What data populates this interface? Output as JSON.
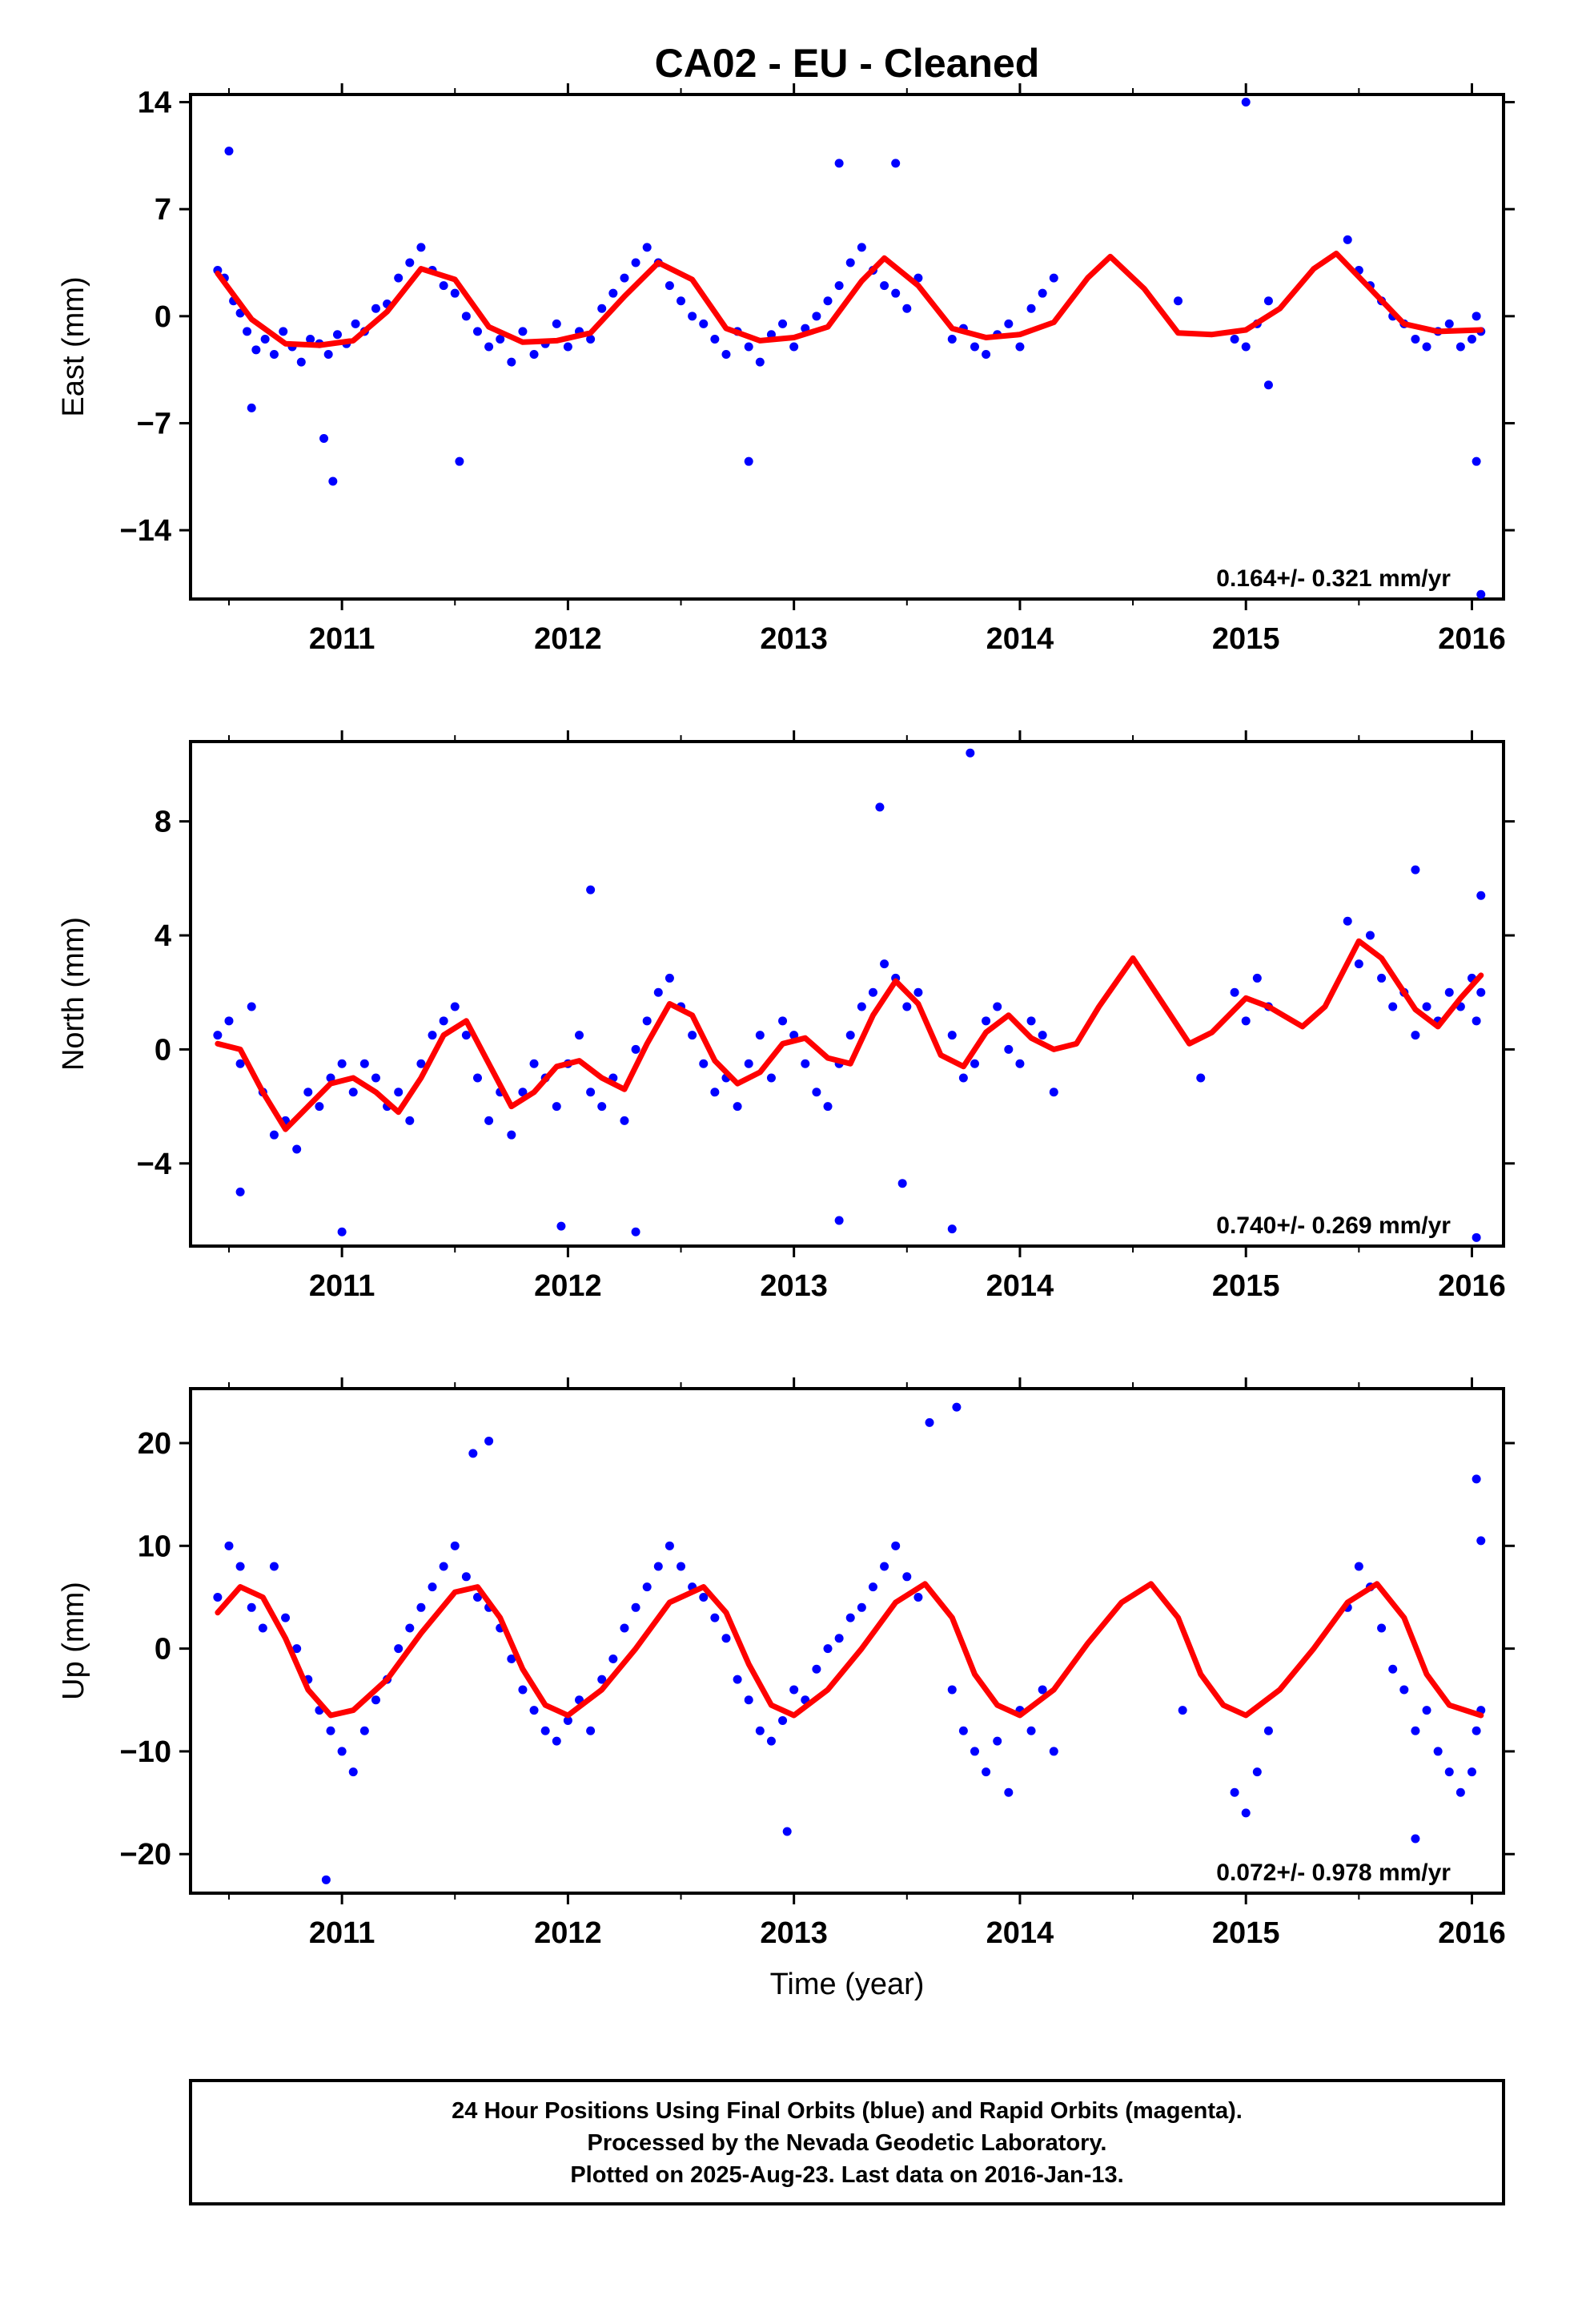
{
  "title": "CA02  - EU - Cleaned",
  "xlabel": "Time (year)",
  "colors": {
    "points": "#0000ff",
    "model": "#ff0000",
    "frame": "#000000"
  },
  "footer": {
    "line1": "24 Hour Positions Using Final Orbits (blue) and Rapid Orbits (magenta).",
    "line2": "Processed by the Nevada Geodetic Laboratory.",
    "line3": "Plotted on 2025-Aug-23. Last data on 2016-Jan-13."
  },
  "chart_data": [
    {
      "type": "scatter",
      "ylabel": "East (mm)",
      "xlim": [
        2010.33,
        2016.14
      ],
      "ylim": [
        -18.5,
        14.5
      ],
      "xticks": [
        "2011",
        "2012",
        "2013",
        "2014",
        "2015",
        "2016"
      ],
      "yticks": [
        "14",
        "7",
        "0",
        "−7",
        "−14"
      ],
      "ytick_values": [
        14,
        7,
        0,
        -7,
        -14
      ],
      "rate": "0.164+/- 0.321 mm/yr",
      "model": {
        "x": [
          2010.45,
          2010.6,
          2010.75,
          2010.9,
          2011.05,
          2011.2,
          2011.35,
          2011.5,
          2011.65,
          2011.8,
          2011.95,
          2012.1,
          2012.25,
          2012.4,
          2012.55,
          2012.7,
          2012.85,
          2013.0,
          2013.15,
          2013.3,
          2013.4,
          2013.55,
          2013.7,
          2013.85,
          2014.0,
          2014.15,
          2014.3,
          2014.4,
          2014.55,
          2014.7,
          2014.85,
          2015.0,
          2015.15,
          2015.3,
          2015.4,
          2015.55,
          2015.7,
          2015.85,
          2016.04
        ],
        "y": [
          2.8,
          -0.2,
          -1.8,
          -1.9,
          -1.6,
          0.3,
          3.1,
          2.4,
          -0.7,
          -1.7,
          -1.6,
          -1.1,
          1.3,
          3.5,
          2.4,
          -0.8,
          -1.6,
          -1.4,
          -0.7,
          2.3,
          3.8,
          2.0,
          -0.8,
          -1.4,
          -1.2,
          -0.4,
          2.5,
          3.9,
          1.8,
          -1.1,
          -1.2,
          -0.9,
          0.5,
          3.1,
          4.1,
          1.8,
          -0.5,
          -1.0,
          -0.9
        ]
      },
      "points": {
        "x": [
          2010.45,
          2010.48,
          2010.52,
          2010.55,
          2010.58,
          2010.62,
          2010.66,
          2010.7,
          2010.74,
          2010.78,
          2010.82,
          2010.86,
          2010.9,
          2010.94,
          2010.98,
          2011.02,
          2011.06,
          2011.1,
          2011.15,
          2011.2,
          2011.25,
          2011.3,
          2011.35,
          2011.4,
          2011.45,
          2011.5,
          2011.55,
          2011.6,
          2011.65,
          2011.7,
          2011.75,
          2011.8,
          2011.85,
          2011.9,
          2011.95,
          2012.0,
          2012.05,
          2012.1,
          2012.15,
          2012.2,
          2012.25,
          2012.3,
          2012.35,
          2012.4,
          2012.45,
          2012.5,
          2012.55,
          2012.6,
          2012.65,
          2012.7,
          2012.75,
          2012.8,
          2012.85,
          2012.9,
          2012.95,
          2013.0,
          2013.05,
          2013.1,
          2013.15,
          2013.2,
          2013.25,
          2013.3,
          2013.35,
          2013.4,
          2013.45,
          2013.5,
          2013.55,
          2013.7,
          2013.75,
          2013.8,
          2013.85,
          2013.9,
          2013.95,
          2014.0,
          2014.05,
          2014.1,
          2014.15,
          2014.7,
          2014.95,
          2015.0,
          2015.05,
          2015.1,
          2015.45,
          2015.5,
          2015.55,
          2015.6,
          2015.65,
          2015.7,
          2015.75,
          2015.8,
          2015.85,
          2015.9,
          2015.95,
          2016.0,
          2016.02,
          2016.04,
          2010.5,
          2010.6,
          2010.92,
          2010.96,
          2011.52,
          2012.8,
          2013.2,
          2013.45,
          2015.0,
          2015.1,
          2016.02,
          2016.04
        ],
        "y": [
          3.0,
          2.5,
          1.0,
          0.2,
          -1.0,
          -2.2,
          -1.5,
          -2.5,
          -1.0,
          -2.0,
          -3.0,
          -1.5,
          -1.8,
          -2.5,
          -1.2,
          -1.8,
          -0.5,
          -1.0,
          0.5,
          0.8,
          2.5,
          3.5,
          4.5,
          3.0,
          2.0,
          1.5,
          0.0,
          -1.0,
          -2.0,
          -1.5,
          -3.0,
          -1.0,
          -2.5,
          -1.8,
          -0.5,
          -2.0,
          -1.0,
          -1.5,
          0.5,
          1.5,
          2.5,
          3.5,
          4.5,
          3.5,
          2.0,
          1.0,
          0.0,
          -0.5,
          -1.5,
          -2.5,
          -1.0,
          -2.0,
          -3.0,
          -1.2,
          -0.5,
          -2.0,
          -0.8,
          0.0,
          1.0,
          2.0,
          3.5,
          4.5,
          3.0,
          2.0,
          1.5,
          0.5,
          2.5,
          -1.5,
          -0.8,
          -2.0,
          -2.5,
          -1.2,
          -0.5,
          -2.0,
          0.5,
          1.5,
          2.5,
          1.0,
          -1.5,
          -2.0,
          -0.5,
          1.0,
          5.0,
          3.0,
          2.0,
          1.0,
          0.0,
          -0.5,
          -1.5,
          -2.0,
          -1.0,
          -0.5,
          -2.0,
          -1.5,
          0.0,
          -1.0,
          10.8,
          -6.0,
          -8.0,
          -10.8,
          -9.5,
          -9.5,
          10.0,
          10.0,
          14.0,
          -4.5,
          -9.5,
          -18.2
        ]
      }
    },
    {
      "type": "scatter",
      "ylabel": "North (mm)",
      "xlim": [
        2010.33,
        2016.14
      ],
      "ylim": [
        -6.9,
        10.8
      ],
      "xticks": [
        "2011",
        "2012",
        "2013",
        "2014",
        "2015",
        "2016"
      ],
      "yticks": [
        "8",
        "4",
        "0",
        "−4"
      ],
      "ytick_values": [
        8,
        4,
        0,
        -4
      ],
      "rate": "0.740+/- 0.269 mm/yr",
      "model": {
        "x": [
          2010.45,
          2010.55,
          2010.65,
          2010.75,
          2010.85,
          2010.95,
          2011.05,
          2011.15,
          2011.25,
          2011.35,
          2011.45,
          2011.55,
          2011.65,
          2011.75,
          2011.85,
          2011.95,
          2012.05,
          2012.15,
          2012.25,
          2012.35,
          2012.45,
          2012.55,
          2012.65,
          2012.75,
          2012.85,
          2012.95,
          2013.05,
          2013.15,
          2013.25,
          2013.35,
          2013.45,
          2013.55,
          2013.65,
          2013.75,
          2013.85,
          2013.95,
          2014.05,
          2014.15,
          2014.25,
          2014.35,
          2014.5,
          2014.6,
          2014.75,
          2014.85,
          2015.0,
          2015.1,
          2015.25,
          2015.35,
          2015.5,
          2015.6,
          2015.75,
          2015.85,
          2015.95,
          2016.04
        ],
        "y": [
          0.2,
          0.0,
          -1.5,
          -2.8,
          -2.0,
          -1.2,
          -1.0,
          -1.5,
          -2.2,
          -1.0,
          0.5,
          1.0,
          -0.5,
          -2.0,
          -1.5,
          -0.6,
          -0.4,
          -1.0,
          -1.4,
          0.2,
          1.6,
          1.2,
          -0.4,
          -1.2,
          -0.8,
          0.2,
          0.4,
          -0.3,
          -0.5,
          1.2,
          2.4,
          1.6,
          -0.2,
          -0.6,
          0.6,
          1.2,
          0.4,
          0.0,
          0.2,
          1.5,
          3.2,
          2.0,
          0.2,
          0.6,
          1.8,
          1.5,
          0.8,
          1.5,
          3.8,
          3.2,
          1.4,
          0.8,
          1.8,
          2.6
        ]
      },
      "points": {
        "x": [
          2010.45,
          2010.5,
          2010.55,
          2010.6,
          2010.65,
          2010.7,
          2010.75,
          2010.8,
          2010.85,
          2010.9,
          2010.95,
          2011.0,
          2011.05,
          2011.1,
          2011.15,
          2011.2,
          2011.25,
          2011.3,
          2011.35,
          2011.4,
          2011.45,
          2011.5,
          2011.55,
          2011.6,
          2011.65,
          2011.7,
          2011.75,
          2011.8,
          2011.85,
          2011.9,
          2011.95,
          2012.0,
          2012.05,
          2012.1,
          2012.15,
          2012.2,
          2012.25,
          2012.3,
          2012.35,
          2012.4,
          2012.45,
          2012.5,
          2012.55,
          2012.6,
          2012.65,
          2012.7,
          2012.75,
          2012.8,
          2012.85,
          2012.9,
          2012.95,
          2013.0,
          2013.05,
          2013.1,
          2013.15,
          2013.2,
          2013.25,
          2013.3,
          2013.35,
          2013.4,
          2013.45,
          2013.5,
          2013.55,
          2013.7,
          2013.75,
          2013.8,
          2013.85,
          2013.9,
          2013.95,
          2014.0,
          2014.05,
          2014.1,
          2014.15,
          2014.8,
          2014.95,
          2015.0,
          2015.05,
          2015.1,
          2015.45,
          2015.5,
          2015.55,
          2015.6,
          2015.65,
          2015.7,
          2015.75,
          2015.8,
          2015.85,
          2015.9,
          2015.95,
          2016.0,
          2016.02,
          2016.04,
          2013.38,
          2013.78,
          2012.1,
          2010.55,
          2011.0,
          2011.97,
          2012.3,
          2013.2,
          2013.48,
          2013.7,
          2015.75,
          2016.02,
          2016.04
        ],
        "y": [
          0.5,
          1.0,
          -0.5,
          1.5,
          -1.5,
          -3.0,
          -2.5,
          -3.5,
          -1.5,
          -2.0,
          -1.0,
          -0.5,
          -1.5,
          -0.5,
          -1.0,
          -2.0,
          -1.5,
          -2.5,
          -0.5,
          0.5,
          1.0,
          1.5,
          0.5,
          -1.0,
          -2.5,
          -1.5,
          -3.0,
          -1.5,
          -0.5,
          -1.0,
          -2.0,
          -0.5,
          0.5,
          -1.5,
          -2.0,
          -1.0,
          -2.5,
          0.0,
          1.0,
          2.0,
          2.5,
          1.5,
          0.5,
          -0.5,
          -1.5,
          -1.0,
          -2.0,
          -0.5,
          0.5,
          -1.0,
          1.0,
          0.5,
          -0.5,
          -1.5,
          -2.0,
          -0.5,
          0.5,
          1.5,
          2.0,
          3.0,
          2.5,
          1.5,
          2.0,
          0.5,
          -1.0,
          -0.5,
          1.0,
          1.5,
          0.0,
          -0.5,
          1.0,
          0.5,
          -1.5,
          -1.0,
          2.0,
          1.0,
          2.5,
          1.5,
          4.5,
          3.0,
          4.0,
          2.5,
          1.5,
          2.0,
          0.5,
          1.5,
          1.0,
          2.0,
          1.5,
          2.5,
          1.0,
          2.0,
          8.5,
          10.4,
          5.6,
          -5.0,
          -6.4,
          -6.2,
          -6.4,
          -6.0,
          -4.7,
          -6.3,
          6.3,
          -6.6,
          5.4
        ]
      }
    },
    {
      "type": "scatter",
      "ylabel": "Up (mm)",
      "xlim": [
        2010.33,
        2016.14
      ],
      "ylim": [
        -23.8,
        25.3
      ],
      "xticks": [
        "2011",
        "2012",
        "2013",
        "2014",
        "2015",
        "2016"
      ],
      "yticks": [
        "20",
        "10",
        "0",
        "−10",
        "−20"
      ],
      "ytick_values": [
        20,
        10,
        0,
        -10,
        -20
      ],
      "rate": "0.072+/- 0.978 mm/yr",
      "model": {
        "x": [
          2010.45,
          2010.55,
          2010.65,
          2010.75,
          2010.85,
          2010.95,
          2011.05,
          2011.2,
          2011.35,
          2011.5,
          2011.6,
          2011.7,
          2011.8,
          2011.9,
          2012.0,
          2012.15,
          2012.3,
          2012.45,
          2012.6,
          2012.7,
          2012.8,
          2012.9,
          2013.0,
          2013.15,
          2013.3,
          2013.45,
          2013.58,
          2013.7,
          2013.8,
          2013.9,
          2014.0,
          2014.15,
          2014.3,
          2014.45,
          2014.58,
          2014.7,
          2014.8,
          2014.9,
          2015.0,
          2015.15,
          2015.3,
          2015.45,
          2015.58,
          2015.7,
          2015.8,
          2015.9,
          2016.04
        ],
        "y": [
          3.5,
          6.0,
          5.0,
          1.0,
          -4.0,
          -6.5,
          -6.0,
          -3.0,
          1.5,
          5.5,
          6.0,
          3.0,
          -2.0,
          -5.5,
          -6.5,
          -4.0,
          0.0,
          4.5,
          6.0,
          3.5,
          -1.5,
          -5.5,
          -6.5,
          -4.0,
          0.0,
          4.5,
          6.3,
          3.0,
          -2.5,
          -5.5,
          -6.5,
          -4.0,
          0.5,
          4.5,
          6.3,
          3.0,
          -2.5,
          -5.5,
          -6.5,
          -4.0,
          0.0,
          4.5,
          6.3,
          3.0,
          -2.5,
          -5.5,
          -6.5
        ]
      },
      "points": {
        "x": [
          2010.45,
          2010.5,
          2010.55,
          2010.6,
          2010.65,
          2010.7,
          2010.75,
          2010.8,
          2010.85,
          2010.9,
          2010.95,
          2011.0,
          2011.05,
          2011.1,
          2011.15,
          2011.2,
          2011.25,
          2011.3,
          2011.35,
          2011.4,
          2011.45,
          2011.5,
          2011.55,
          2011.6,
          2011.65,
          2011.7,
          2011.75,
          2011.8,
          2011.85,
          2011.9,
          2011.95,
          2012.0,
          2012.05,
          2012.1,
          2012.15,
          2012.2,
          2012.25,
          2012.3,
          2012.35,
          2012.4,
          2012.45,
          2012.5,
          2012.55,
          2012.6,
          2012.65,
          2012.7,
          2012.75,
          2012.8,
          2012.85,
          2012.9,
          2012.95,
          2013.0,
          2013.05,
          2013.1,
          2013.15,
          2013.2,
          2013.25,
          2013.3,
          2013.35,
          2013.4,
          2013.45,
          2013.5,
          2013.55,
          2013.7,
          2013.75,
          2013.8,
          2013.85,
          2013.9,
          2013.95,
          2014.0,
          2014.05,
          2014.1,
          2014.15,
          2014.72,
          2014.95,
          2015.0,
          2015.05,
          2015.1,
          2015.45,
          2015.5,
          2015.55,
          2015.6,
          2015.65,
          2015.7,
          2015.75,
          2015.8,
          2015.85,
          2015.9,
          2015.95,
          2016.0,
          2016.02,
          2016.04,
          2013.6,
          2013.72,
          2011.58,
          2011.65,
          2010.93,
          2012.97,
          2015.75,
          2016.02,
          2016.04
        ],
        "y": [
          5.0,
          10.0,
          8.0,
          4.0,
          2.0,
          8.0,
          3.0,
          0.0,
          -3.0,
          -6.0,
          -8.0,
          -10.0,
          -12.0,
          -8.0,
          -5.0,
          -3.0,
          0.0,
          2.0,
          4.0,
          6.0,
          8.0,
          10.0,
          7.0,
          5.0,
          4.0,
          2.0,
          -1.0,
          -4.0,
          -6.0,
          -8.0,
          -9.0,
          -7.0,
          -5.0,
          -8.0,
          -3.0,
          -1.0,
          2.0,
          4.0,
          6.0,
          8.0,
          10.0,
          8.0,
          6.0,
          5.0,
          3.0,
          1.0,
          -3.0,
          -5.0,
          -8.0,
          -9.0,
          -7.0,
          -4.0,
          -5.0,
          -2.0,
          0.0,
          1.0,
          3.0,
          4.0,
          6.0,
          8.0,
          10.0,
          7.0,
          5.0,
          -4.0,
          -8.0,
          -10.0,
          -12.0,
          -9.0,
          -14.0,
          -6.0,
          -8.0,
          -4.0,
          -10.0,
          -6.0,
          -14.0,
          -16.0,
          -12.0,
          -8.0,
          4.0,
          8.0,
          6.0,
          2.0,
          -2.0,
          -4.0,
          -8.0,
          -6.0,
          -10.0,
          -12.0,
          -14.0,
          -12.0,
          -8.0,
          -6.0,
          22.0,
          23.5,
          19.0,
          20.2,
          -22.5,
          -17.8,
          -18.5,
          16.5,
          10.5
        ]
      }
    }
  ]
}
